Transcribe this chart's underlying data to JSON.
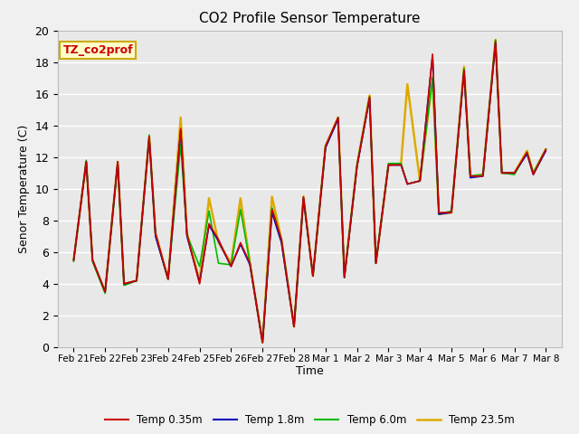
{
  "title": "CO2 Profile Sensor Temperature",
  "xlabel": "Time",
  "ylabel": "Senor Temperature (C)",
  "annotation": "TZ_co2prof",
  "ylim": [
    0,
    20
  ],
  "fig_bg_color": "#f0f0f0",
  "plot_bg_color": "#e8e8e8",
  "series_order": [
    "Temp 23.5m",
    "Temp 6.0m",
    "Temp 1.8m",
    "Temp 0.35m"
  ],
  "series": {
    "Temp 0.35m": {
      "color": "#cc0000",
      "linewidth": 1.2,
      "zorder": 4
    },
    "Temp 1.8m": {
      "color": "#0000bb",
      "linewidth": 1.2,
      "zorder": 3
    },
    "Temp 6.0m": {
      "color": "#00bb00",
      "linewidth": 1.2,
      "zorder": 2
    },
    "Temp 23.5m": {
      "color": "#ddaa00",
      "linewidth": 1.8,
      "zorder": 1
    }
  },
  "x_tick_labels": [
    "Feb 21",
    "Feb 22",
    "Feb 23",
    "Feb 24",
    "Feb 25",
    "Feb 26",
    "Feb 27",
    "Feb 28",
    "Mar 1",
    "Mar 2",
    "Mar 3",
    "Mar 4",
    "Mar 5",
    "Mar 6",
    "Mar 7",
    "Mar 8"
  ],
  "x_tick_positions": [
    0,
    1,
    2,
    3,
    4,
    5,
    6,
    7,
    8,
    9,
    10,
    11,
    12,
    13,
    14,
    15
  ],
  "data": {
    "Temp 0.35m": {
      "x": [
        0.0,
        0.4,
        0.6,
        1.0,
        1.4,
        1.6,
        2.0,
        2.4,
        2.6,
        3.0,
        3.4,
        3.6,
        4.0,
        4.3,
        4.6,
        5.0,
        5.3,
        5.6,
        6.0,
        6.3,
        6.6,
        7.0,
        7.3,
        7.6,
        8.0,
        8.4,
        8.6,
        9.0,
        9.4,
        9.6,
        10.0,
        10.4,
        10.6,
        11.0,
        11.4,
        11.6,
        12.0,
        12.4,
        12.6,
        13.0,
        13.4,
        13.6,
        14.0,
        14.4,
        14.6,
        15.0
      ],
      "y": [
        5.5,
        11.7,
        5.5,
        3.5,
        11.7,
        4.0,
        4.2,
        13.3,
        7.2,
        4.3,
        13.8,
        7.1,
        4.0,
        7.8,
        6.8,
        5.1,
        6.6,
        5.3,
        0.3,
        8.7,
        6.8,
        1.3,
        9.5,
        4.5,
        12.7,
        14.5,
        4.4,
        11.4,
        15.8,
        5.3,
        11.5,
        11.5,
        10.3,
        10.5,
        18.5,
        8.5,
        8.5,
        17.5,
        10.8,
        10.8,
        19.3,
        11.0,
        11.0,
        12.3,
        10.9,
        12.5
      ]
    },
    "Temp 1.8m": {
      "x": [
        0.0,
        0.4,
        0.6,
        1.0,
        1.4,
        1.6,
        2.0,
        2.4,
        2.6,
        3.0,
        3.4,
        3.6,
        4.0,
        4.3,
        4.6,
        5.0,
        5.3,
        5.6,
        6.0,
        6.3,
        6.6,
        7.0,
        7.3,
        7.6,
        8.0,
        8.4,
        8.6,
        9.0,
        9.4,
        9.6,
        10.0,
        10.4,
        10.6,
        11.0,
        11.4,
        11.6,
        12.0,
        12.4,
        12.6,
        13.0,
        13.4,
        13.6,
        14.0,
        14.4,
        14.6,
        15.0
      ],
      "y": [
        5.5,
        11.7,
        5.5,
        3.5,
        11.7,
        4.0,
        4.2,
        13.2,
        7.0,
        4.3,
        13.7,
        7.0,
        4.1,
        7.7,
        6.7,
        5.1,
        6.5,
        5.2,
        0.3,
        8.5,
        6.6,
        1.3,
        9.4,
        4.5,
        12.6,
        14.4,
        4.4,
        11.4,
        15.7,
        5.3,
        11.5,
        11.5,
        10.3,
        10.5,
        18.4,
        8.4,
        8.5,
        17.4,
        10.7,
        10.8,
        19.2,
        11.0,
        11.0,
        12.2,
        10.9,
        12.4
      ]
    },
    "Temp 6.0m": {
      "x": [
        0.0,
        0.4,
        0.6,
        1.0,
        1.4,
        1.6,
        2.0,
        2.4,
        2.6,
        3.0,
        3.4,
        3.6,
        4.0,
        4.3,
        4.6,
        5.0,
        5.3,
        5.6,
        6.0,
        6.3,
        6.6,
        7.0,
        7.3,
        7.6,
        8.0,
        8.4,
        8.6,
        9.0,
        9.4,
        9.6,
        10.0,
        10.4,
        10.6,
        11.0,
        11.4,
        11.6,
        12.0,
        12.4,
        12.6,
        13.0,
        13.4,
        13.6,
        14.0,
        14.4,
        14.6,
        15.0
      ],
      "y": [
        5.4,
        11.8,
        5.4,
        3.4,
        11.6,
        3.9,
        4.2,
        13.4,
        7.1,
        4.3,
        12.8,
        7.1,
        5.1,
        8.6,
        5.3,
        5.2,
        8.7,
        5.3,
        0.3,
        8.8,
        6.8,
        1.3,
        9.4,
        4.5,
        12.6,
        14.5,
        4.4,
        11.5,
        15.8,
        5.3,
        11.6,
        11.6,
        10.3,
        10.5,
        17.0,
        8.4,
        8.6,
        17.6,
        10.8,
        10.9,
        19.4,
        11.0,
        10.9,
        12.3,
        11.0,
        12.5
      ]
    },
    "Temp 23.5m": {
      "x": [
        0.0,
        0.4,
        0.6,
        1.0,
        1.4,
        1.6,
        2.0,
        2.4,
        2.6,
        3.0,
        3.4,
        3.6,
        4.0,
        4.3,
        4.6,
        5.0,
        5.3,
        5.6,
        6.0,
        6.3,
        6.6,
        7.0,
        7.3,
        7.6,
        8.0,
        8.4,
        8.6,
        9.0,
        9.4,
        9.6,
        10.0,
        10.4,
        10.6,
        11.0,
        11.4,
        11.6,
        12.0,
        12.4,
        12.6,
        13.0,
        13.4,
        13.6,
        14.0,
        14.4,
        14.6,
        15.0
      ],
      "y": [
        5.5,
        11.7,
        5.5,
        3.5,
        11.7,
        4.0,
        4.2,
        13.3,
        7.2,
        4.3,
        14.5,
        7.2,
        4.2,
        9.4,
        6.6,
        5.3,
        9.4,
        5.3,
        0.3,
        9.5,
        6.8,
        1.3,
        9.5,
        4.5,
        12.7,
        14.5,
        4.5,
        11.5,
        15.9,
        5.3,
        11.5,
        11.6,
        16.6,
        10.5,
        17.0,
        8.4,
        8.5,
        17.7,
        10.8,
        10.9,
        19.4,
        11.0,
        11.0,
        12.4,
        11.0,
        12.5
      ]
    }
  },
  "yticks": [
    0,
    2,
    4,
    6,
    8,
    10,
    12,
    14,
    16,
    18,
    20
  ],
  "xlim": [
    -0.5,
    15.5
  ]
}
